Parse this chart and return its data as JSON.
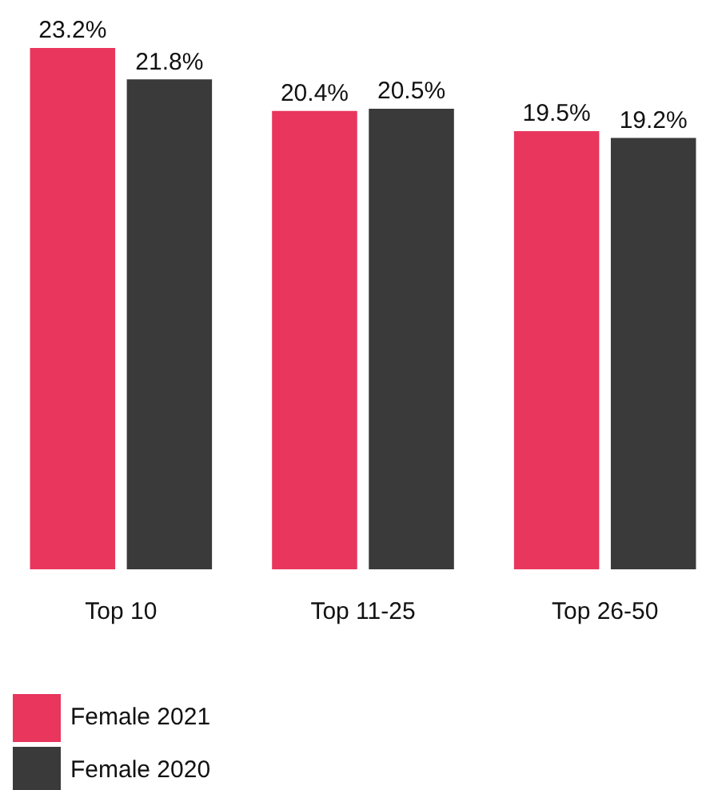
{
  "chart_data": {
    "type": "bar",
    "categories": [
      "Top 10",
      "Top 11-25",
      "Top 26-50"
    ],
    "series": [
      {
        "name": "Female 2021",
        "color": "#e8365d",
        "values": [
          23.2,
          20.4,
          19.5
        ],
        "value_labels": [
          "23.2%",
          "20.4%",
          "19.5%"
        ]
      },
      {
        "name": "Female 2020",
        "color": "#3a3a3a",
        "values": [
          21.8,
          20.5,
          19.2
        ],
        "value_labels": [
          "21.8%",
          "20.5%",
          "19.2%"
        ]
      }
    ],
    "grid": false,
    "legend": "bottom left"
  }
}
